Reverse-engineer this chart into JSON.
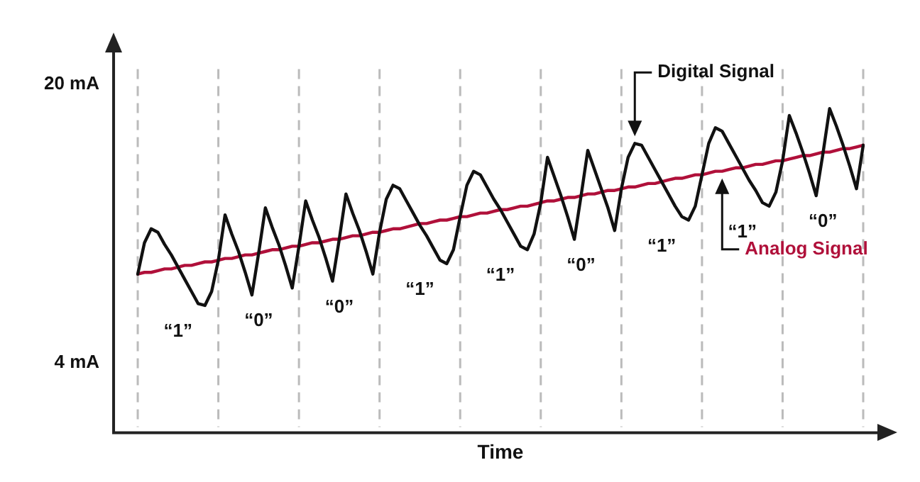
{
  "chart_data": {
    "type": "line",
    "xlabel": "Time",
    "categories": [
      null,
      null,
      null,
      null,
      null,
      null,
      null,
      null,
      null,
      null,
      null,
      null,
      null,
      null,
      null,
      null,
      null,
      null,
      null,
      null,
      null,
      null,
      null,
      null,
      null,
      null,
      null,
      null,
      null,
      null,
      null,
      null,
      null,
      null,
      null,
      null,
      null,
      null,
      null,
      null,
      null,
      null,
      null,
      null,
      null,
      null,
      null,
      null,
      null,
      null,
      null,
      null,
      null,
      null,
      null,
      null,
      null,
      null,
      null,
      null,
      null,
      null,
      null,
      null,
      null,
      null,
      null,
      null,
      null,
      null,
      null,
      null,
      null,
      null,
      null,
      null,
      null,
      null,
      null,
      null,
      null,
      null,
      null,
      null,
      null,
      null,
      null,
      null,
      null,
      null,
      null,
      null,
      null,
      null,
      null,
      null,
      null,
      null,
      null,
      null,
      null,
      null,
      null,
      null,
      null,
      null,
      null,
      null,
      null
    ],
    "ylim": [
      0,
      22
    ],
    "yticks": [
      {
        "value": 4,
        "label": "4 mA"
      },
      {
        "value": 20,
        "label": "20 mA"
      }
    ],
    "tick_labels": "y",
    "grid": "x",
    "legend": false,
    "marker": "none",
    "series": [
      {
        "name": "Digital Signal",
        "color": "#111111",
        "values": [
          9.1,
          10.9,
          11.7,
          11.5,
          10.8,
          10.2,
          9.5,
          8.8,
          8.1,
          7.4,
          7.3,
          8.1,
          9.9,
          12.5,
          11.4,
          10.4,
          9.2,
          7.9,
          10.3,
          12.9,
          11.8,
          10.8,
          9.6,
          8.3,
          10.7,
          13.3,
          12.2,
          11.2,
          10.0,
          8.7,
          11.1,
          13.7,
          12.6,
          11.6,
          10.4,
          9.1,
          11.5,
          13.4,
          14.2,
          14.0,
          13.3,
          12.6,
          11.9,
          11.3,
          10.6,
          9.9,
          9.7,
          10.5,
          12.4,
          14.2,
          15.0,
          14.8,
          14.1,
          13.4,
          12.8,
          12.1,
          11.4,
          10.7,
          10.5,
          11.4,
          13.2,
          15.8,
          14.7,
          13.6,
          12.4,
          11.1,
          13.6,
          16.2,
          15.1,
          14.0,
          12.9,
          11.6,
          14.0,
          15.8,
          16.6,
          16.5,
          15.8,
          15.1,
          14.4,
          13.7,
          13.0,
          12.4,
          12.2,
          13.0,
          14.8,
          16.6,
          17.5,
          17.3,
          16.6,
          15.9,
          15.2,
          14.5,
          13.9,
          13.2,
          13.0,
          13.8,
          15.6,
          18.2,
          17.2,
          16.1,
          14.9,
          13.6,
          16.0,
          18.6,
          17.6,
          16.5,
          15.3,
          14.0,
          16.5
        ]
      },
      {
        "name": "Analog Signal",
        "color": "#b0103a",
        "values": [
          9.1,
          9.2,
          9.2,
          9.3,
          9.4,
          9.4,
          9.5,
          9.6,
          9.6,
          9.7,
          9.8,
          9.8,
          9.9,
          10.0,
          10.0,
          10.1,
          10.2,
          10.2,
          10.3,
          10.4,
          10.5,
          10.5,
          10.6,
          10.7,
          10.7,
          10.8,
          10.9,
          10.9,
          11.0,
          11.1,
          11.1,
          11.2,
          11.3,
          11.3,
          11.4,
          11.5,
          11.5,
          11.6,
          11.7,
          11.7,
          11.8,
          11.9,
          12.0,
          12.0,
          12.1,
          12.2,
          12.2,
          12.3,
          12.4,
          12.4,
          12.5,
          12.6,
          12.6,
          12.7,
          12.8,
          12.8,
          12.9,
          13.0,
          13.0,
          13.1,
          13.2,
          13.3,
          13.3,
          13.4,
          13.5,
          13.5,
          13.6,
          13.7,
          13.7,
          13.8,
          13.9,
          13.9,
          14.0,
          14.1,
          14.1,
          14.2,
          14.3,
          14.3,
          14.4,
          14.5,
          14.6,
          14.6,
          14.7,
          14.8,
          14.8,
          14.9,
          15.0,
          15.0,
          15.1,
          15.2,
          15.2,
          15.3,
          15.4,
          15.4,
          15.5,
          15.6,
          15.6,
          15.7,
          15.8,
          15.9,
          15.9,
          16.0,
          16.1,
          16.1,
          16.2,
          16.3,
          16.3,
          16.4,
          16.5
        ]
      }
    ],
    "annotations": [
      "“1”",
      "“0”",
      "“0”",
      "“1”",
      "“1”",
      "“0”",
      "“1”",
      "“1”",
      "“0”"
    ]
  }
}
